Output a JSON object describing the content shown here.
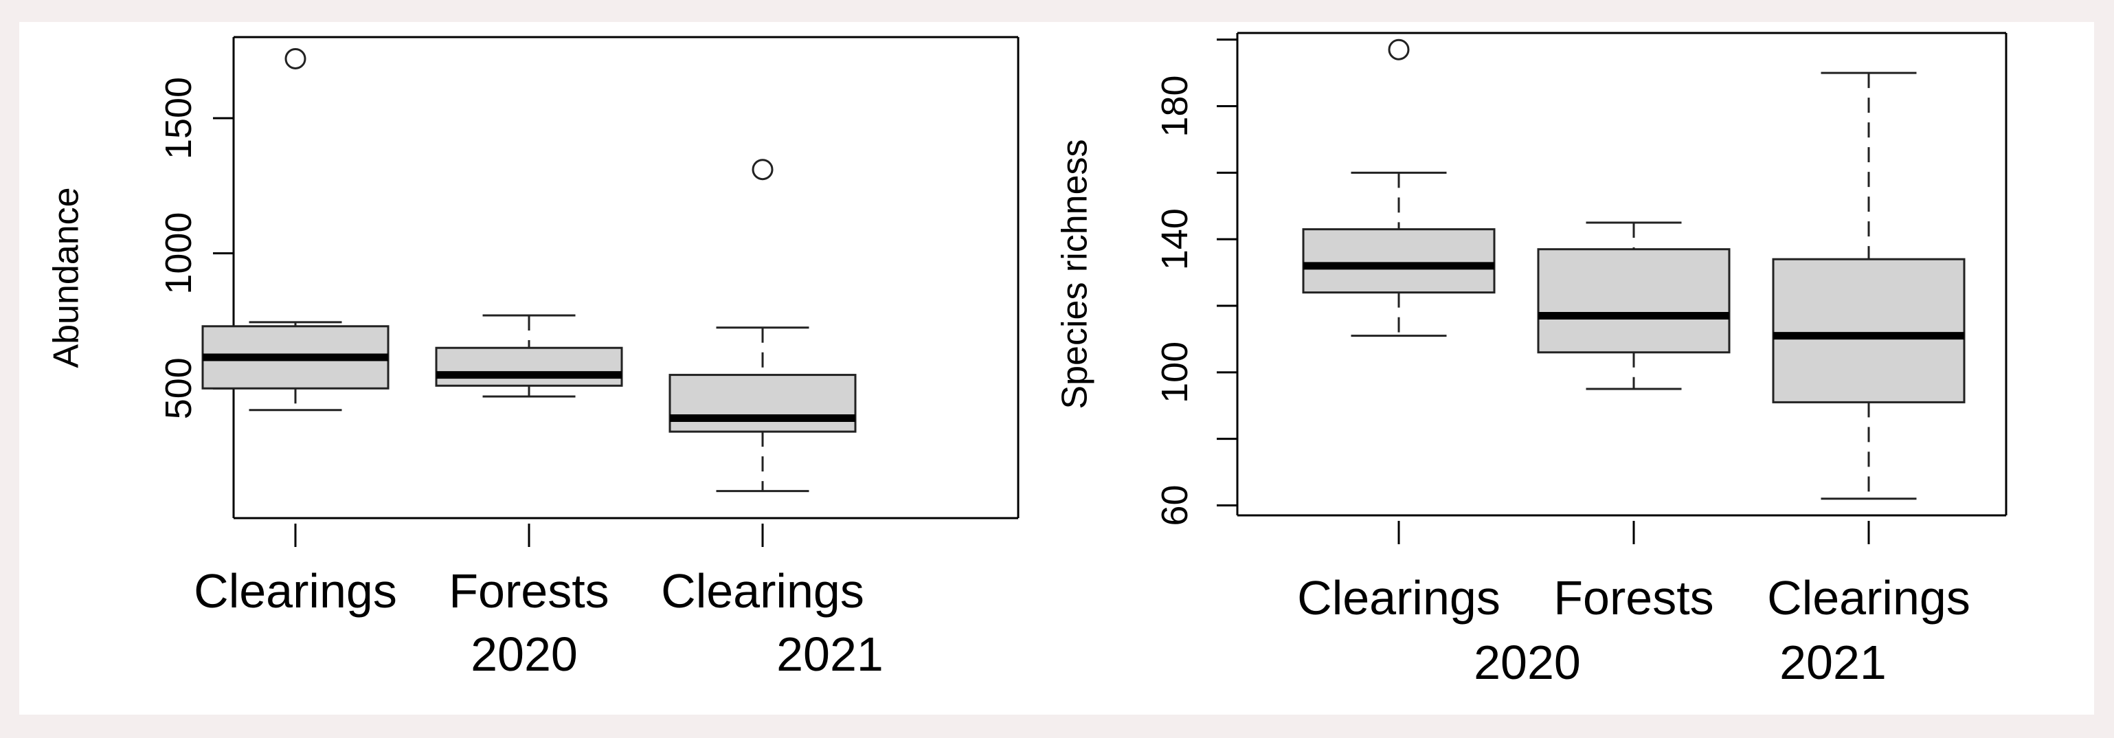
{
  "chart_data": [
    {
      "type": "boxplot",
      "ylabel": "Abundance",
      "ylim": [
        20,
        1800
      ],
      "yticks": [
        500,
        1000,
        1500
      ],
      "categories": [
        "Clearings",
        "Forests",
        "Clearings"
      ],
      "groups": [
        "2020",
        "2021"
      ],
      "boxes": [
        {
          "category": "Clearings",
          "min": 420,
          "q1": 500,
          "median": 615,
          "q3": 730,
          "max": 745,
          "outliers": [
            1720
          ]
        },
        {
          "category": "Forests",
          "min": 470,
          "q1": 510,
          "median": 550,
          "q3": 650,
          "max": 770,
          "outliers": []
        },
        {
          "category": "Clearings",
          "min": 120,
          "q1": 340,
          "median": 390,
          "q3": 550,
          "max": 725,
          "outliers": [
            1310
          ]
        }
      ]
    },
    {
      "type": "boxplot",
      "ylabel": "Species richness",
      "ylim": [
        57,
        202
      ],
      "yticks": [
        60,
        80,
        100,
        120,
        140,
        160,
        180,
        200
      ],
      "ytick_labels_shown": [
        60,
        100,
        140,
        180
      ],
      "categories": [
        "Clearings",
        "Forests",
        "Clearings"
      ],
      "groups": [
        "2020",
        "2021"
      ],
      "boxes": [
        {
          "category": "Clearings",
          "min": 111,
          "q1": 124,
          "median": 132,
          "q3": 143,
          "max": 160,
          "outliers": [
            197
          ]
        },
        {
          "category": "Forests",
          "min": 95,
          "q1": 106,
          "median": 117,
          "q3": 137,
          "max": 145,
          "outliers": []
        },
        {
          "category": "Clearings",
          "min": 62,
          "q1": 91,
          "median": 111,
          "q3": 134,
          "max": 190,
          "outliers": []
        }
      ]
    }
  ]
}
